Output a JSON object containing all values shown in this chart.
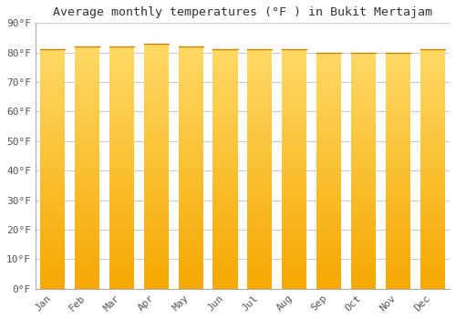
{
  "title": "Average monthly temperatures (°F ) in Bukit Mertajam",
  "months": [
    "Jan",
    "Feb",
    "Mar",
    "Apr",
    "May",
    "Jun",
    "Jul",
    "Aug",
    "Sep",
    "Oct",
    "Nov",
    "Dec"
  ],
  "values": [
    81,
    82,
    82,
    83,
    82,
    81,
    81,
    81,
    80,
    80,
    80,
    81
  ],
  "bar_color_bottom": "#F5A800",
  "bar_color_top": "#FFD966",
  "bar_edge_color": "#C8860A",
  "ylim": [
    0,
    90
  ],
  "yticks": [
    0,
    10,
    20,
    30,
    40,
    50,
    60,
    70,
    80,
    90
  ],
  "ytick_labels": [
    "0°F",
    "10°F",
    "20°F",
    "30°F",
    "40°F",
    "50°F",
    "60°F",
    "70°F",
    "80°F",
    "90°F"
  ],
  "background_color": "#FFFFFF",
  "plot_bg_color": "#FFFFFF",
  "grid_color": "#CCCCCC",
  "title_fontsize": 9.5,
  "tick_fontsize": 8,
  "font_family": "monospace",
  "bar_width": 0.72
}
